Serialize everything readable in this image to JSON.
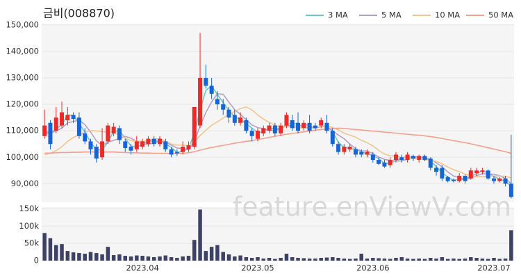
{
  "chart_data": [
    {
      "type": "candlestick",
      "title": "금비(008870)",
      "up_color": "#f02828",
      "down_color": "#1565d8",
      "open": [
        108000,
        113000,
        110000,
        112000,
        114000,
        116000,
        115000,
        109000,
        106000,
        104000,
        100000,
        106000,
        109000,
        111000,
        106000,
        104000,
        103000,
        104000,
        105000,
        107000,
        105000,
        106000,
        103000,
        102000,
        102000,
        103000,
        104000,
        112000,
        130000,
        127000,
        122000,
        120000,
        118000,
        116000,
        113000,
        114000,
        110000,
        107000,
        109000,
        110000,
        112000,
        109000,
        112000,
        114000,
        113000,
        111000,
        113000,
        112000,
        112000,
        113000,
        110000,
        105000,
        102000,
        103000,
        103000,
        102000,
        101000,
        101000,
        99000,
        98000,
        97000,
        99000,
        100000,
        99000,
        100500,
        99000,
        100500,
        99500,
        96000,
        96000,
        92500,
        91500,
        91000,
        93000,
        92000,
        94000,
        94500,
        95000,
        92000,
        91000,
        92000,
        90000
      ],
      "high": [
        118000,
        114000,
        119000,
        121000,
        119000,
        117000,
        117000,
        111000,
        107000,
        105000,
        111000,
        113000,
        113000,
        112000,
        107000,
        105000,
        108000,
        107000,
        108000,
        108000,
        108000,
        107000,
        104000,
        103000,
        106000,
        106000,
        119000,
        147000,
        135000,
        130000,
        125000,
        122000,
        119000,
        118000,
        117000,
        115000,
        111000,
        111000,
        112000,
        113000,
        113000,
        113000,
        117000,
        116000,
        117000,
        114000,
        116000,
        113000,
        115000,
        116000,
        111000,
        106000,
        105000,
        105000,
        104000,
        103000,
        103000,
        102000,
        100000,
        99000,
        100000,
        102000,
        101000,
        102000,
        101000,
        101000,
        101000,
        100000,
        97000,
        97000,
        93000,
        92000,
        94000,
        93500,
        96000,
        96000,
        96000,
        95500,
        93000,
        92500,
        93000,
        108500
      ],
      "low": [
        107000,
        103000,
        109000,
        111000,
        112000,
        113000,
        107000,
        105000,
        101000,
        98000,
        99000,
        105000,
        108000,
        105000,
        102000,
        101000,
        102000,
        103000,
        104000,
        104000,
        104000,
        102000,
        100000,
        100500,
        101000,
        102000,
        103000,
        111000,
        126000,
        122000,
        118000,
        116000,
        113000,
        112000,
        112000,
        109000,
        106000,
        106000,
        108000,
        109000,
        108000,
        108000,
        111000,
        110000,
        109000,
        110000,
        109000,
        110000,
        111000,
        109000,
        104000,
        101000,
        101000,
        102000,
        100000,
        100000,
        100000,
        98000,
        97000,
        96000,
        96000,
        98000,
        98000,
        98000,
        98500,
        98000,
        98500,
        95000,
        93000,
        91000,
        90500,
        90500,
        90500,
        90000,
        91500,
        93000,
        93500,
        91500,
        90000,
        90500,
        89000,
        84500
      ],
      "close": [
        112000,
        105000,
        115000,
        117000,
        116000,
        114500,
        108000,
        106000,
        103000,
        99500,
        106000,
        112000,
        111500,
        106500,
        103500,
        102500,
        106000,
        106000,
        107000,
        105000,
        107000,
        103000,
        101000,
        101500,
        104000,
        104500,
        119000,
        130000,
        127000,
        124000,
        120000,
        118000,
        115000,
        113000,
        115000,
        110000,
        108000,
        110000,
        111000,
        112000,
        109000,
        112000,
        116000,
        111000,
        110000,
        113000,
        110000,
        111000,
        114000,
        110000,
        105000,
        102000,
        104000,
        104000,
        101000,
        101000,
        102000,
        99000,
        97500,
        96500,
        99000,
        101000,
        99000,
        101000,
        99500,
        100500,
        99000,
        96000,
        94500,
        92000,
        91000,
        91000,
        93000,
        91000,
        95000,
        95000,
        95000,
        92000,
        91000,
        92000,
        90000,
        85000
      ],
      "series": [
        {
          "name": "3 MA",
          "color": "#6cc7c9",
          "values": [
            110000,
            109000,
            110700,
            112300,
            116000,
            115800,
            112800,
            109500,
            105700,
            102800,
            102800,
            105800,
            109800,
            110000,
            107200,
            104200,
            104000,
            104800,
            106300,
            106000,
            106300,
            105000,
            103700,
            101800,
            102200,
            103300,
            109200,
            117800,
            125300,
            127000,
            123700,
            120700,
            117700,
            115300,
            114300,
            112700,
            111000,
            109300,
            109700,
            111000,
            110700,
            111000,
            112300,
            113000,
            112300,
            111300,
            111000,
            111300,
            111700,
            111700,
            109700,
            105700,
            103700,
            103300,
            103000,
            102000,
            101300,
            100700,
            99500,
            97700,
            97700,
            98800,
            99700,
            100300,
            99800,
            100300,
            99700,
            98500,
            96500,
            94200,
            92500,
            91300,
            91700,
            91700,
            93000,
            93700,
            95000,
            94000,
            92700,
            91700,
            91000,
            89000
          ]
        },
        {
          "name": "5 MA",
          "color": "#b3a0c9",
          "values": [
            109000,
            109000,
            110000,
            111000,
            113000,
            113500,
            114100,
            112300,
            109500,
            106200,
            104500,
            105700,
            106400,
            107100,
            107900,
            107200,
            106000,
            104900,
            105000,
            105300,
            106200,
            105600,
            104600,
            103500,
            103300,
            102800,
            106000,
            111800,
            116900,
            120900,
            124000,
            123800,
            120800,
            118000,
            116200,
            114200,
            112200,
            111200,
            110800,
            110200,
            110000,
            110800,
            112000,
            112000,
            111600,
            112400,
            112000,
            111000,
            111600,
            111600,
            110000,
            108400,
            107000,
            105000,
            103200,
            102400,
            102400,
            101400,
            100100,
            99200,
            98800,
            98600,
            98600,
            99300,
            100100,
            100200,
            99800,
            99200,
            97900,
            96400,
            94500,
            92900,
            92300,
            91600,
            92200,
            93000,
            93800,
            93600,
            93600,
            93000,
            92000,
            90000
          ]
        },
        {
          "name": "10 MA",
          "color": "#f2c58f",
          "values": [
            101000,
            101500,
            102500,
            104000,
            106000,
            107500,
            108500,
            109500,
            110000,
            110000,
            109600,
            109700,
            109400,
            108400,
            107200,
            106300,
            106100,
            106000,
            106400,
            106900,
            107000,
            106100,
            105000,
            104600,
            104600,
            104500,
            105800,
            108200,
            110200,
            112100,
            113400,
            114800,
            116200,
            117300,
            118400,
            119000,
            117900,
            116000,
            114400,
            113200,
            112100,
            111500,
            111600,
            111400,
            111000,
            111300,
            111500,
            111400,
            111600,
            111700,
            111300,
            110300,
            109100,
            108400,
            107600,
            106400,
            105500,
            104300,
            102600,
            101200,
            100600,
            100500,
            100000,
            99700,
            99500,
            99400,
            99100,
            98800,
            98500,
            97500,
            96300,
            95300,
            94600,
            93600,
            93100,
            92600,
            92700,
            92800,
            92900,
            92900,
            92800,
            92200
          ]
        },
        {
          "name": "50 MA",
          "color": "#f4a08c",
          "values": [
            101500,
            101600,
            101700,
            101800,
            101800,
            101900,
            101900,
            102000,
            102000,
            102000,
            102000,
            102000,
            102000,
            101900,
            101800,
            101700,
            101700,
            101600,
            101600,
            101500,
            101500,
            101500,
            101400,
            101400,
            101500,
            101700,
            102100,
            102700,
            103200,
            103700,
            104100,
            104500,
            104900,
            105300,
            105700,
            106000,
            106300,
            106700,
            107100,
            107500,
            107900,
            108300,
            108700,
            109000,
            109300,
            109600,
            109900,
            110200,
            110500,
            110700,
            110900,
            111000,
            110900,
            110700,
            110500,
            110300,
            110100,
            109900,
            109700,
            109500,
            109300,
            109100,
            108900,
            108700,
            108500,
            108300,
            108100,
            107800,
            107500,
            107100,
            106700,
            106300,
            105900,
            105500,
            105100,
            104600,
            104100,
            103600,
            103100,
            102600,
            102100,
            101500
          ]
        }
      ],
      "legend": "top-right",
      "grid": true,
      "ylim": [
        83000,
        150500
      ],
      "yticks": [
        {
          "value": 90000,
          "label": "90,000"
        },
        {
          "value": 100000,
          "label": "100,000"
        },
        {
          "value": 110000,
          "label": "110,000"
        },
        {
          "value": 120000,
          "label": "120,000"
        },
        {
          "value": 130000,
          "label": "130,000"
        },
        {
          "value": 140000,
          "label": "140,000"
        },
        {
          "value": 150000,
          "label": "150,000"
        }
      ],
      "watermark": "feature.enViewV.com"
    },
    {
      "type": "bar",
      "color": "#3d4163",
      "categories": [
        null,
        null,
        null,
        null,
        null,
        null,
        null,
        null,
        null,
        null,
        null,
        null,
        null,
        null,
        null,
        null,
        null,
        "2023.04",
        null,
        null,
        null,
        null,
        null,
        null,
        null,
        null,
        null,
        null,
        null,
        null,
        null,
        null,
        null,
        null,
        null,
        null,
        null,
        "2023.05",
        null,
        null,
        null,
        null,
        null,
        null,
        null,
        null,
        null,
        null,
        null,
        null,
        null,
        null,
        null,
        null,
        null,
        null,
        null,
        "2023.06",
        null,
        null,
        null,
        null,
        null,
        null,
        null,
        null,
        null,
        null,
        null,
        null,
        null,
        null,
        null,
        null,
        null,
        null,
        null,
        null,
        "2023.07",
        null,
        null,
        null
      ],
      "values": [
        80000,
        65000,
        45000,
        48000,
        28000,
        24000,
        22000,
        20000,
        25000,
        22000,
        18000,
        40000,
        16000,
        18000,
        14000,
        12000,
        15000,
        14000,
        12000,
        10000,
        12000,
        15000,
        10000,
        8000,
        12000,
        14000,
        60000,
        148000,
        28000,
        40000,
        45000,
        25000,
        18000,
        12000,
        15000,
        10000,
        8000,
        10000,
        6000,
        8000,
        5000,
        8000,
        20000,
        10000,
        8000,
        7000,
        6000,
        6000,
        8000,
        9000,
        10000,
        8000,
        6000,
        5000,
        6000,
        20000,
        6000,
        8000,
        7000,
        6000,
        5000,
        8000,
        10000,
        6000,
        5000,
        6000,
        5000,
        8000,
        6000,
        10000,
        5000,
        6000,
        5000,
        6000,
        10000,
        8000,
        6000,
        5000,
        8000,
        5000,
        6000,
        88000
      ],
      "ylim": [
        0,
        155000
      ],
      "yticks": [
        0,
        {
          "value": 50000,
          "label": "50k"
        },
        {
          "value": 100000,
          "label": "100k"
        },
        {
          "value": 150000,
          "label": "150k"
        }
      ],
      "grid": true
    }
  ]
}
